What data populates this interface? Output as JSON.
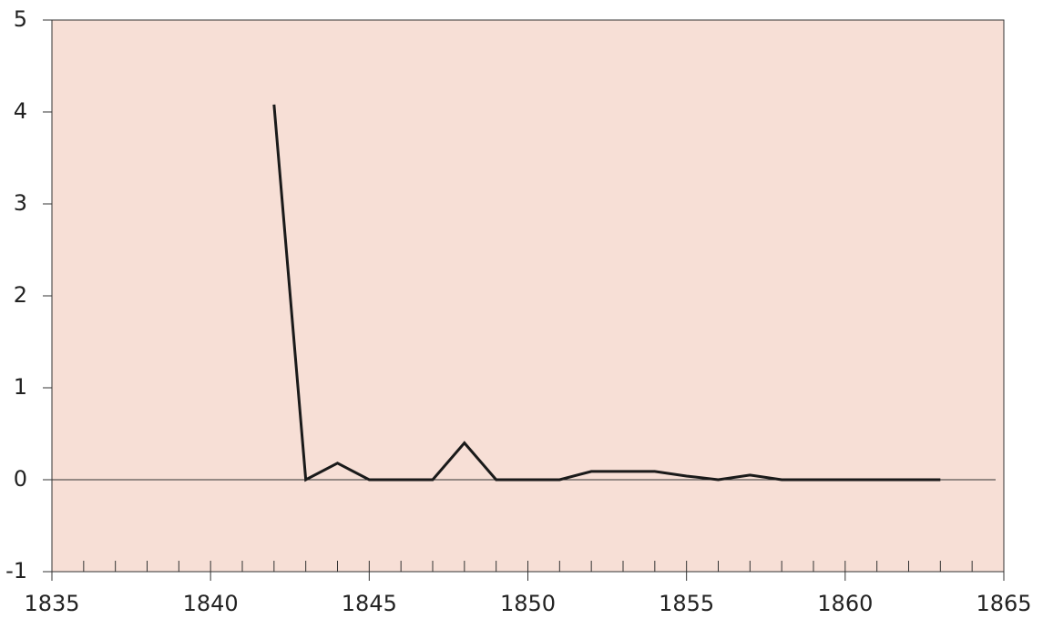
{
  "chart_data": {
    "type": "line",
    "x": [
      1842,
      1843,
      1844,
      1845,
      1846,
      1847,
      1848,
      1849,
      1850,
      1851,
      1852,
      1853,
      1854,
      1855,
      1856,
      1857,
      1858,
      1859,
      1860,
      1861,
      1862,
      1863
    ],
    "series": [
      {
        "color": "#1a1a1a",
        "values": [
          4.08,
          0,
          0.18,
          0,
          0,
          0,
          0.4,
          0,
          0,
          0,
          0.09,
          0.09,
          0.09,
          0.04,
          0,
          0.05,
          0,
          0,
          0,
          0,
          0,
          0
        ]
      }
    ],
    "xlim": [
      1835,
      1865
    ],
    "xticks": [
      1835,
      1840,
      1845,
      1850,
      1855,
      1860,
      1865
    ],
    "xminorticks": [
      1836,
      1837,
      1838,
      1839,
      1841,
      1842,
      1843,
      1844,
      1846,
      1847,
      1848,
      1849,
      1851,
      1852,
      1853,
      1854,
      1856,
      1857,
      1858,
      1859,
      1861,
      1862,
      1863,
      1864
    ],
    "ylim": [
      -1,
      5
    ],
    "yticks": [
      -1,
      0,
      1,
      2,
      3,
      4,
      5
    ],
    "hlines": [
      0
    ],
    "background": "#f7dfd6"
  }
}
